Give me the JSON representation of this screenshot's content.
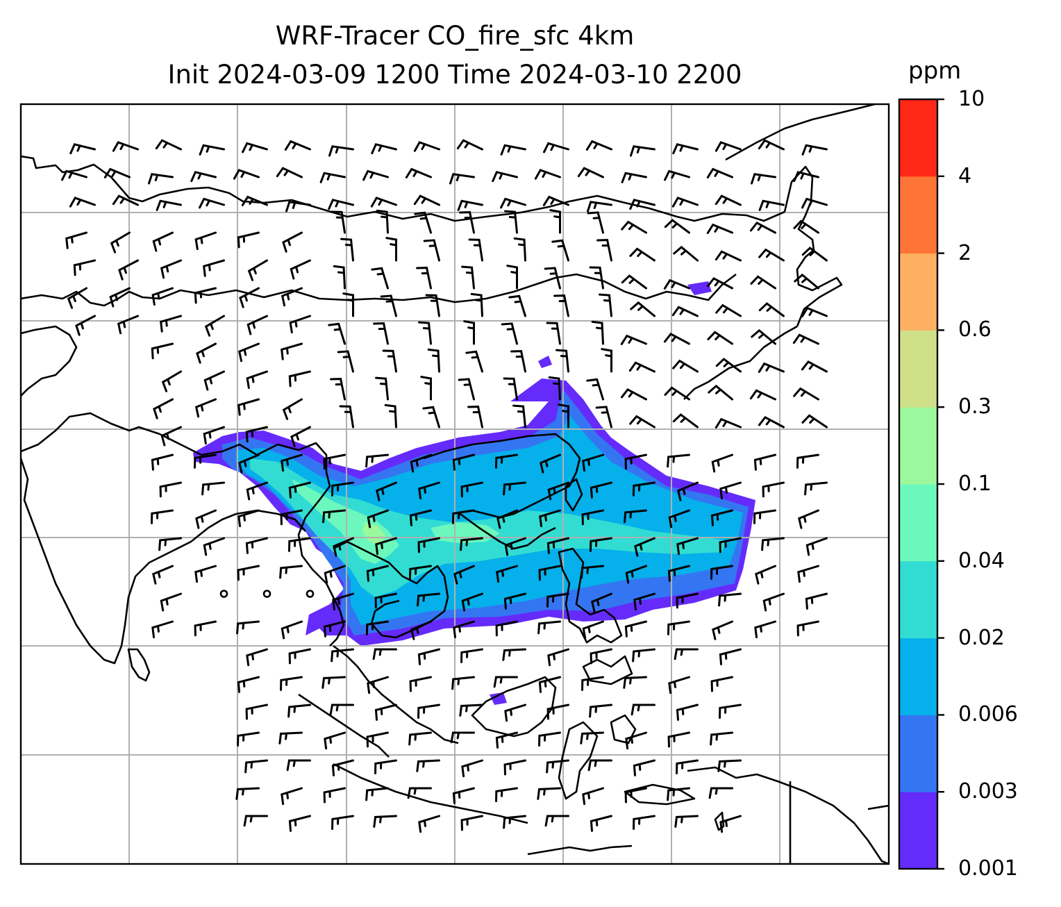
{
  "title": {
    "line1": "WRF-Tracer CO_fire_sfc 4km",
    "line2": "Init 2024-03-09 1200 Time 2024-03-10 2200"
  },
  "colorbar": {
    "unit": "ppm",
    "levels": [
      "0.001",
      "0.003",
      "0.006",
      "0.02",
      "0.04",
      "0.1",
      "0.3",
      "0.6",
      "2",
      "4",
      "10"
    ],
    "colors": [
      "#652bfa",
      "#3476f2",
      "#06b0ea",
      "#32dcd2",
      "#6cf8bd",
      "#9cf89c",
      "#d0e088",
      "#fdb061",
      "#ff7437",
      "#ff2716"
    ]
  },
  "map": {
    "gridlines": true,
    "coastline_color": "#000000",
    "grid_color": "#b0b0b0",
    "overlay": "wind barbs and calm circles (black)"
  }
}
